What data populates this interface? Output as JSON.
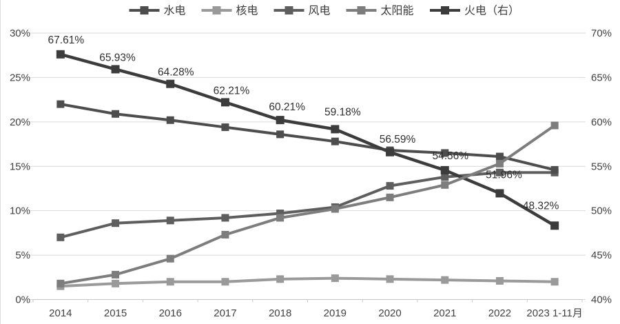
{
  "chart_data": {
    "type": "line",
    "title": "",
    "categories": [
      "2014",
      "2015",
      "2016",
      "2017",
      "2018",
      "2019",
      "2020",
      "2021",
      "2022",
      "2023 1-11月"
    ],
    "series": [
      {
        "name": "水电",
        "axis": "left",
        "color": "#4d4d4d",
        "values": [
          22.0,
          20.9,
          20.2,
          19.4,
          18.6,
          17.8,
          16.8,
          16.5,
          16.1,
          14.6
        ]
      },
      {
        "name": "核电",
        "axis": "left",
        "color": "#9a9a9a",
        "values": [
          1.5,
          1.8,
          2.0,
          2.0,
          2.3,
          2.4,
          2.3,
          2.2,
          2.1,
          2.0
        ]
      },
      {
        "name": "风电",
        "axis": "left",
        "color": "#5e5e5e",
        "values": [
          7.0,
          8.6,
          8.9,
          9.2,
          9.7,
          10.4,
          12.8,
          13.8,
          14.3,
          14.3
        ]
      },
      {
        "name": "太阳能",
        "axis": "left",
        "color": "#7d7d7d",
        "values": [
          1.8,
          2.8,
          4.6,
          7.3,
          9.2,
          10.2,
          11.5,
          12.9,
          15.3,
          19.6
        ]
      },
      {
        "name": "火电（右）",
        "axis": "right",
        "color": "#3c3c3c",
        "values": [
          67.61,
          65.93,
          64.28,
          62.21,
          60.21,
          59.18,
          56.59,
          54.56,
          51.96,
          48.32
        ],
        "data_labels": [
          "67.61%",
          "65.93%",
          "64.28%",
          "62.21%",
          "60.21%",
          "59.18%",
          "56.59%",
          "54.56%",
          "51.96%",
          "48.32%"
        ]
      }
    ],
    "left_axis": {
      "min": 0,
      "max": 30,
      "step": 5,
      "tick_labels": [
        "0%",
        "5%",
        "10%",
        "15%",
        "20%",
        "25%",
        "30%"
      ]
    },
    "right_axis": {
      "min": 40,
      "max": 70,
      "step": 5,
      "tick_labels": [
        "40%",
        "45%",
        "50%",
        "55%",
        "60%",
        "65%",
        "70%"
      ]
    },
    "legend_position": "top",
    "grid": true
  },
  "colors": {
    "background": "#ffffff",
    "gridline": "#d9d9d9",
    "axis_line": "#c6c6c6",
    "axis_text": "#404040",
    "data_label_text": "#2f2f2f",
    "legend_text": "#3c3c3c"
  }
}
